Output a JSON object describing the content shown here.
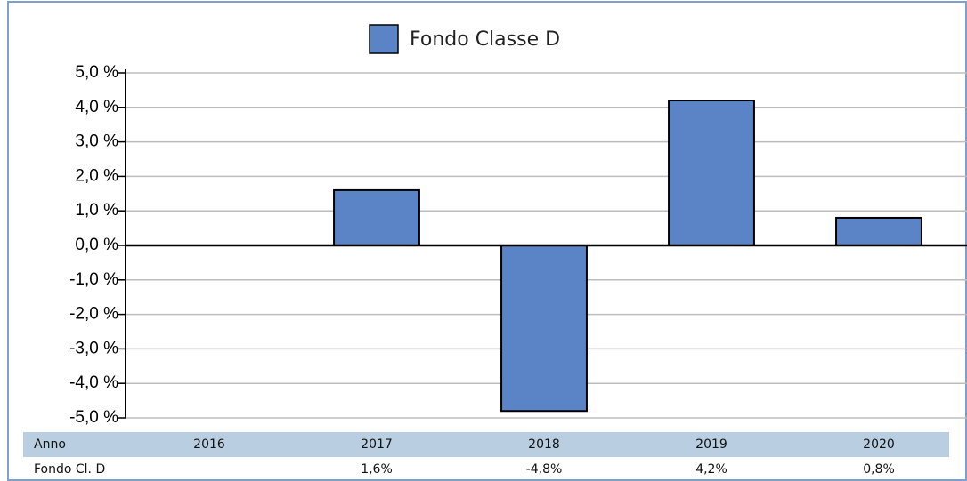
{
  "chart_data": {
    "type": "bar",
    "legend": "Fondo Classe D",
    "categories": [
      "2016",
      "2017",
      "2018",
      "2019",
      "2020"
    ],
    "values": [
      null,
      1.6,
      -4.8,
      4.2,
      0.8
    ],
    "value_labels": [
      null,
      "1,6%",
      "-4,8%",
      "4,2%",
      "0,8%"
    ],
    "color": "#5b84c6",
    "ylim": [
      -5,
      5
    ],
    "yticks": [
      {
        "value": 5,
        "label": "5,0 %"
      },
      {
        "value": 4,
        "label": "4,0 %"
      },
      {
        "value": 3,
        "label": "3,0 %"
      },
      {
        "value": 2,
        "label": "2,0 %"
      },
      {
        "value": 1,
        "label": "1,0 %"
      },
      {
        "value": 0,
        "label": "0,0 %"
      },
      {
        "value": -1,
        "label": "-1,0 %"
      },
      {
        "value": -2,
        "label": "-2,0 %"
      },
      {
        "value": -3,
        "label": "-3,0 %"
      },
      {
        "value": -4,
        "label": "-4,0 %"
      },
      {
        "value": -5,
        "label": "-5,0 %"
      }
    ],
    "grid": true,
    "table_header": "Anno",
    "table_row_label": "Fondo Cl. D"
  }
}
